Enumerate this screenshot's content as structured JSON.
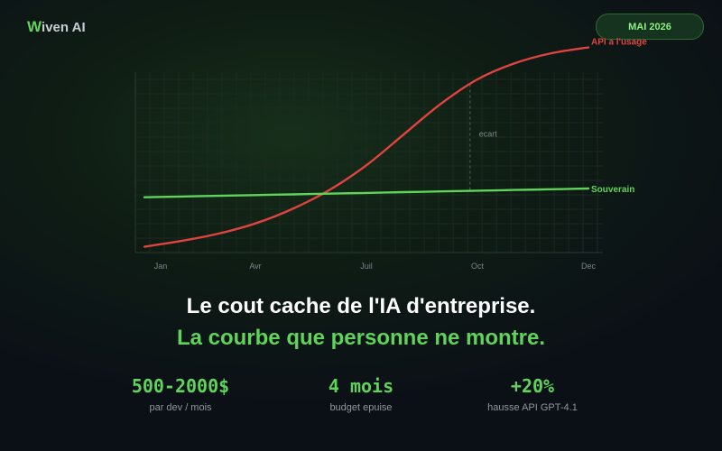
{
  "brand": {
    "logo_initial": "W",
    "logo_rest": "iven AI"
  },
  "date_badge": "MAI 2026",
  "colors": {
    "usage": "#e0443e",
    "sovereign": "#5fd35a",
    "accent": "#5fd35a"
  },
  "chart_data": {
    "type": "line",
    "categories": [
      "Jan",
      "Avr",
      "Juil",
      "Oct",
      "Dec"
    ],
    "x": [
      0,
      1,
      2,
      3,
      4,
      5,
      6,
      7,
      8,
      9,
      10,
      11,
      12
    ],
    "x_axis_labels": {
      "Jan": 0,
      "Avr": 3,
      "Juil": 6,
      "Oct": 9,
      "Dec": 12
    },
    "series": [
      {
        "name": "API a l'usage",
        "color": "#e0443e",
        "values": [
          4,
          8,
          13,
          20,
          30,
          43,
          60,
          81,
          102,
          119,
          130,
          137,
          141
        ]
      },
      {
        "name": "Souverain",
        "color": "#5fd35a",
        "values": [
          38,
          38.5,
          39,
          39.5,
          40,
          40.5,
          41,
          41.5,
          42,
          42.5,
          43,
          43.5,
          44
        ]
      }
    ],
    "annotation": {
      "label": "ecart",
      "x": 8.8
    },
    "ylim": [
      0,
      150
    ],
    "grid": true
  },
  "headline": "Le cout cache de l'IA d'entreprise.",
  "subheadline": "La courbe que personne ne montre.",
  "stats": [
    {
      "value": "500-2000$",
      "label": "par dev / mois"
    },
    {
      "value": "4 mois",
      "label": "budget epuise"
    },
    {
      "value": "+20%",
      "label": "hausse API GPT-4.1"
    }
  ]
}
